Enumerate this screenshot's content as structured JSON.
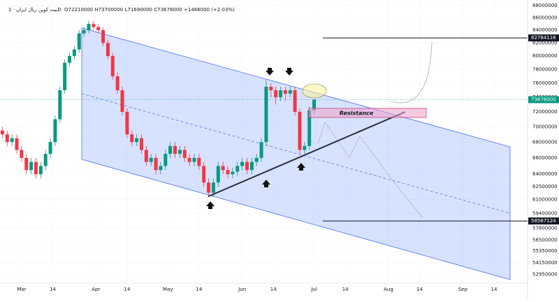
{
  "header": {
    "symbol": "بیت کوین ریال ایران · 1D",
    "ohlc": "O72210000 H73700000 L71690000 C73676000 +1466000 (+2.03%)"
  },
  "chart_data": {
    "type": "candlestick",
    "ylog": true,
    "grid": true,
    "up_color": "#089981",
    "down_color": "#f23645",
    "ylim": [
      52100000,
      88930000
    ],
    "yticks": [
      88000000,
      86000000,
      84000000,
      82000000,
      80000000,
      78000000,
      76000000,
      74000000,
      72000000,
      70000000,
      68000000,
      66000000,
      64000000,
      62500000,
      61000000,
      59400000,
      57800000,
      56500000,
      55350000,
      54150000,
      52950000
    ],
    "xlim": [
      -9,
      211
    ],
    "xticks": [
      {
        "value": 0,
        "label": "Mar"
      },
      {
        "value": 13,
        "label": "14"
      },
      {
        "value": 31,
        "label": "Apr"
      },
      {
        "value": 44,
        "label": "14"
      },
      {
        "value": 61,
        "label": "May"
      },
      {
        "value": 74,
        "label": "14"
      },
      {
        "value": 92,
        "label": "Jun"
      },
      {
        "value": 105,
        "label": "14"
      },
      {
        "value": 122,
        "label": "Jul"
      },
      {
        "value": 135,
        "label": "14"
      },
      {
        "value": 153,
        "label": "Aug"
      },
      {
        "value": 166,
        "label": "14"
      },
      {
        "value": 184,
        "label": "Sep"
      },
      {
        "value": 197,
        "label": "14"
      }
    ],
    "x": [
      -8,
      -6,
      -4,
      -2,
      0,
      2,
      4,
      6,
      8,
      10,
      12,
      14,
      16,
      18,
      20,
      22,
      24,
      26,
      28,
      30,
      32,
      34,
      36,
      38,
      40,
      42,
      44,
      46,
      48,
      50,
      52,
      54,
      56,
      58,
      60,
      62,
      64,
      66,
      68,
      70,
      72,
      74,
      76,
      78,
      80,
      82,
      84,
      86,
      88,
      90,
      92,
      94,
      96,
      98,
      100,
      102,
      104,
      106,
      108,
      110,
      112,
      114,
      116,
      118,
      120,
      122
    ],
    "open": [
      69500000,
      69000000,
      68000000,
      68500000,
      67000000,
      66000000,
      64500000,
      65500000,
      64000000,
      65000000,
      66500000,
      68000000,
      71000000,
      75000000,
      79000000,
      80000000,
      81000000,
      83500000,
      84000000,
      85000000,
      84500000,
      84000000,
      82000000,
      80000000,
      77000000,
      75000000,
      72000000,
      69000000,
      68000000,
      68500000,
      67000000,
      65500000,
      66000000,
      64500000,
      65000000,
      66500000,
      67500000,
      66500000,
      67000000,
      66000000,
      65500000,
      66000000,
      65000000,
      63000000,
      61800000,
      63000000,
      65000000,
      64500000,
      64000000,
      64300000,
      65000000,
      65500000,
      64500000,
      65500000,
      66000000,
      68000000,
      75500000,
      75000000,
      74000000,
      75000000,
      74500000,
      75000000,
      72000000,
      67000000,
      67500000,
      72210000
    ],
    "high": [
      70000000,
      69500000,
      69000000,
      69000000,
      67500000,
      66500000,
      66000000,
      66000000,
      65500000,
      67000000,
      68500000,
      71500000,
      75500000,
      79500000,
      80500000,
      81500000,
      84000000,
      84500000,
      85500000,
      85500000,
      85000000,
      84500000,
      82500000,
      80500000,
      77500000,
      75500000,
      72500000,
      69500000,
      69000000,
      69000000,
      67500000,
      66500000,
      66500000,
      65500000,
      67000000,
      68000000,
      68000000,
      67500000,
      67500000,
      66500000,
      66500000,
      66500000,
      65500000,
      63500000,
      63500000,
      65500000,
      65500000,
      65000000,
      64800000,
      65500000,
      66000000,
      66000000,
      66000000,
      66500000,
      68500000,
      76500000,
      76000000,
      75500000,
      75500000,
      75500000,
      75500000,
      75500000,
      72500000,
      68000000,
      72700000,
      73700000
    ],
    "low": [
      68500000,
      67500000,
      67500000,
      66500000,
      65500000,
      64000000,
      64000000,
      63500000,
      63500000,
      64500000,
      66000000,
      67500000,
      70500000,
      74500000,
      78500000,
      79500000,
      80500000,
      83000000,
      83500000,
      84000000,
      83500000,
      81500000,
      79500000,
      76500000,
      74500000,
      71500000,
      68500000,
      67500000,
      67500000,
      66500000,
      65000000,
      65000000,
      64000000,
      64000000,
      64500000,
      66000000,
      66000000,
      66000000,
      65500000,
      65000000,
      65000000,
      64500000,
      62500000,
      61300000,
      61300000,
      62500000,
      64000000,
      63500000,
      63500000,
      63800000,
      64500000,
      64000000,
      64000000,
      65000000,
      65500000,
      67500000,
      74000000,
      73000000,
      73500000,
      73500000,
      74000000,
      71500000,
      66500000,
      66500000,
      67000000,
      71690000
    ],
    "close": [
      69000000,
      68000000,
      68500000,
      67000000,
      66000000,
      64500000,
      65500000,
      64000000,
      65000000,
      66500000,
      68000000,
      71000000,
      75000000,
      79000000,
      80000000,
      81000000,
      83500000,
      84000000,
      85000000,
      84500000,
      84000000,
      82000000,
      80000000,
      77000000,
      75000000,
      72000000,
      69000000,
      68000000,
      68500000,
      67000000,
      65500000,
      66000000,
      64500000,
      65000000,
      66500000,
      67500000,
      66500000,
      67000000,
      66000000,
      65500000,
      66000000,
      65000000,
      63000000,
      61800000,
      63000000,
      65000000,
      64500000,
      64000000,
      64300000,
      65000000,
      65500000,
      64500000,
      65500000,
      66000000,
      68000000,
      75500000,
      75000000,
      74000000,
      75000000,
      74500000,
      75000000,
      72000000,
      67000000,
      67500000,
      72210000,
      73676000
    ],
    "levels": [
      82784116,
      58587124
    ],
    "annotations": {
      "resistance": "Resistance"
    }
  }
}
